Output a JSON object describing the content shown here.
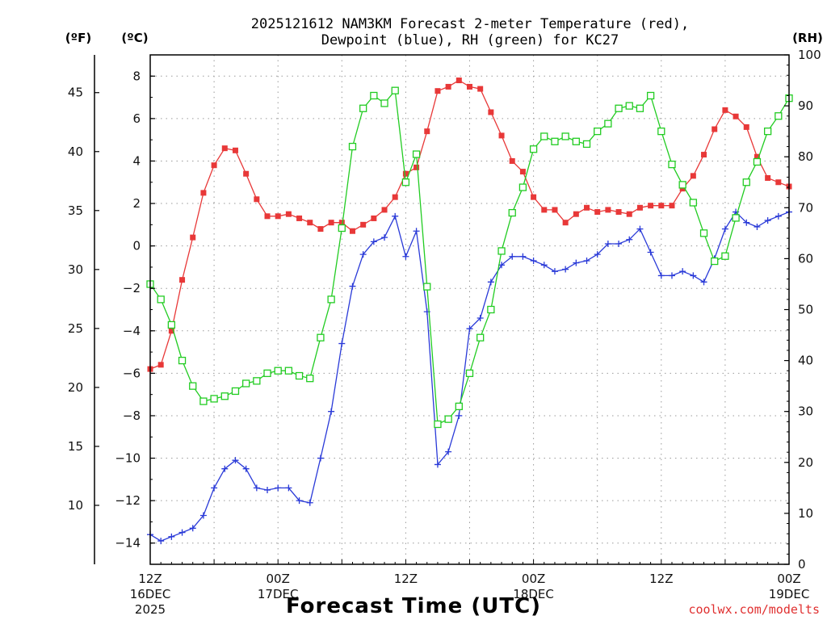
{
  "chart_data": {
    "type": "line",
    "title": [
      "2025121612 NAM3KM Forecast 2-meter Temperature (red),",
      "Dewpoint (blue), RH (green) for KC27"
    ],
    "xlabel": "Forecast Time (UTC)",
    "credit": "coolwx.com/modelts",
    "units": {
      "fahrenheit": "(ºF)",
      "celsius": "(ºC)",
      "rh": "(RH)"
    },
    "x_hours": [
      0,
      1,
      2,
      3,
      4,
      5,
      6,
      7,
      8,
      9,
      10,
      11,
      12,
      13,
      14,
      15,
      16,
      17,
      18,
      19,
      20,
      21,
      22,
      23,
      24,
      25,
      26,
      27,
      28,
      29,
      30,
      31,
      32,
      33,
      34,
      35,
      36,
      37,
      38,
      39,
      40,
      41,
      42,
      43,
      44,
      45,
      46,
      47,
      48,
      49,
      50,
      51,
      52,
      53,
      54,
      55,
      56,
      57,
      58,
      59,
      60
    ],
    "xlim": [
      0,
      60
    ],
    "x_ticks": [
      {
        "hour": 0,
        "lines": [
          "12Z",
          "16DEC",
          "2025"
        ]
      },
      {
        "hour": 12,
        "lines": [
          "00Z",
          "17DEC"
        ]
      },
      {
        "hour": 24,
        "lines": [
          "12Z"
        ]
      },
      {
        "hour": 36,
        "lines": [
          "00Z",
          "18DEC"
        ]
      },
      {
        "hour": 48,
        "lines": [
          "12Z"
        ]
      },
      {
        "hour": 60,
        "lines": [
          "00Z",
          "19DEC"
        ]
      }
    ],
    "left_axis_celsius": {
      "ylim": [
        -15,
        9
      ],
      "ticks": [
        8,
        6,
        4,
        2,
        0,
        -2,
        -4,
        -6,
        -8,
        -10,
        -12,
        -14
      ]
    },
    "left_axis_fahrenheit": {
      "ticks": [
        45,
        40,
        35,
        30,
        25,
        20,
        15,
        10
      ]
    },
    "right_axis_rh": {
      "ylim": [
        0,
        100
      ],
      "ticks": [
        100,
        90,
        80,
        70,
        60,
        50,
        40,
        30,
        20,
        10,
        0
      ]
    },
    "series": [
      {
        "name": "2-meter Temperature",
        "unit": "degC",
        "axis": "celsius",
        "color": "#e83838",
        "marker": "filled-square",
        "values": [
          -5.8,
          -5.6,
          -4.0,
          -1.6,
          0.4,
          2.5,
          3.8,
          4.6,
          4.5,
          3.4,
          2.2,
          1.4,
          1.4,
          1.5,
          1.3,
          1.1,
          0.8,
          1.1,
          1.1,
          0.7,
          1.0,
          1.3,
          1.7,
          2.3,
          3.4,
          3.7,
          5.4,
          7.3,
          7.5,
          7.8,
          7.5,
          7.4,
          6.3,
          5.2,
          4.0,
          3.5,
          2.3,
          1.7,
          1.7,
          1.1,
          1.5,
          1.8,
          1.6,
          1.7,
          1.6,
          1.5,
          1.8,
          1.9,
          1.9,
          1.9,
          2.7,
          3.3,
          4.3,
          5.5,
          6.4,
          6.1,
          5.6,
          4.2,
          3.2,
          3.0,
          2.8
        ]
      },
      {
        "name": "Dewpoint",
        "unit": "degC",
        "axis": "celsius",
        "color": "#2a3ad8",
        "marker": "plus",
        "values": [
          -13.6,
          -13.9,
          -13.7,
          -13.5,
          -13.3,
          -12.7,
          -11.4,
          -10.5,
          -10.1,
          -10.5,
          -11.4,
          -11.5,
          -11.4,
          -11.4,
          -12.0,
          -12.1,
          -10.0,
          -7.8,
          -4.6,
          -1.9,
          -0.4,
          0.2,
          0.4,
          1.4,
          -0.5,
          0.7,
          -3.1,
          -10.3,
          -9.7,
          -8.0,
          -3.9,
          -3.4,
          -1.7,
          -0.9,
          -0.5,
          -0.5,
          -0.7,
          -0.9,
          -1.2,
          -1.1,
          -0.8,
          -0.7,
          -0.4,
          0.1,
          0.1,
          0.3,
          0.8,
          -0.3,
          -1.4,
          -1.4,
          -1.2,
          -1.4,
          -1.7,
          -0.6,
          0.8,
          1.6,
          1.1,
          0.9,
          1.2,
          1.4,
          1.6
        ]
      },
      {
        "name": "Relative Humidity",
        "unit": "percent",
        "axis": "rh",
        "color": "#22cc22",
        "marker": "open-square",
        "values": [
          55,
          52,
          47,
          40,
          35,
          32,
          32.5,
          33,
          34,
          35.5,
          36,
          37.5,
          38,
          38,
          37,
          36.5,
          44.5,
          52,
          66,
          82,
          89.5,
          92,
          90.5,
          93,
          75,
          80.5,
          54.5,
          27.5,
          28.5,
          31,
          37.5,
          44.5,
          50,
          61.5,
          69,
          74,
          81.5,
          84,
          83,
          84,
          83,
          82.5,
          85,
          86.5,
          89.5,
          90,
          89.5,
          92,
          85,
          78.5,
          74.5,
          71,
          65,
          59.5,
          60.5,
          68,
          75,
          79,
          85,
          88,
          91.5
        ]
      }
    ]
  }
}
